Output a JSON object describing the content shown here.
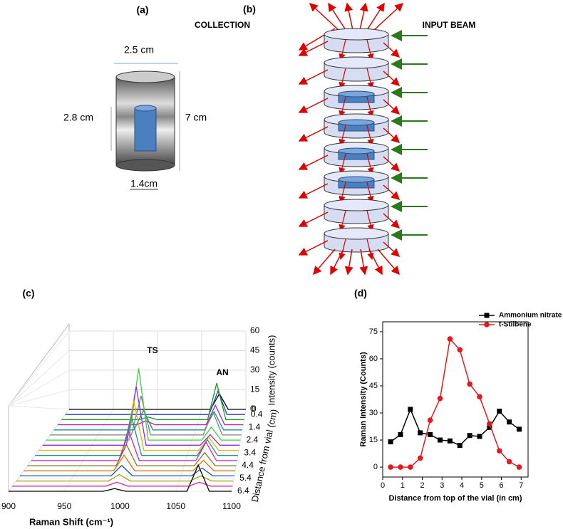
{
  "panel_a": {
    "label": "(a)",
    "width": "2.5 cm",
    "inner_height": "2.8 cm",
    "height": "7 cm",
    "inner_width": "1.4cm"
  },
  "panel_b": {
    "label": "(b)",
    "collection": "COLLECTION",
    "input_beam": "INPUT BEAM"
  },
  "chart_data": [
    {
      "type": "waterfall",
      "label": "(c)",
      "xlabel": "Raman Shift (cm⁻¹)",
      "ylabel": "Intensity (counts)",
      "zlabel": "Distance from vial (cm)",
      "annotations": [
        "TS",
        "AN"
      ],
      "x": [
        900,
        985,
        995,
        1005,
        1060,
        1070,
        1080,
        1100
      ],
      "xlim": [
        900,
        1100
      ],
      "xticks": [
        900,
        950,
        1000,
        1050,
        1100
      ],
      "ylim": [
        0,
        60
      ],
      "yticks": [
        0,
        15,
        30,
        45,
        60
      ],
      "z": [
        0,
        0.4,
        0.8,
        1.2,
        1.6,
        2.0,
        2.4,
        2.8,
        3.2,
        3.6,
        4.0,
        4.4,
        4.8,
        5.2,
        5.6,
        6.0,
        6.4
      ],
      "zlim": [
        0,
        6.4
      ],
      "zticks": [
        0,
        0.4,
        1.4,
        2.4,
        3.4,
        4.4,
        5.4,
        6.4
      ],
      "series": [
        {
          "color": "#000000",
          "values": [
            0,
            0,
            0,
            0,
            0,
            12,
            0,
            0
          ]
        },
        {
          "color": "#1f3fd0",
          "values": [
            0,
            0,
            0,
            0,
            0,
            18,
            0,
            0
          ]
        },
        {
          "color": "#1a9a1a",
          "values": [
            0,
            0,
            2,
            0,
            0,
            28,
            0,
            0
          ]
        },
        {
          "color": "#b0219e",
          "values": [
            0,
            0,
            3,
            0,
            0,
            15,
            0,
            0
          ]
        },
        {
          "color": "#1f8f8f",
          "values": [
            0,
            0,
            15,
            0,
            0,
            14,
            0,
            0
          ]
        },
        {
          "color": "#808080",
          "values": [
            0,
            0,
            30,
            0,
            0,
            18,
            0,
            0
          ]
        },
        {
          "color": "#3ecf3e",
          "values": [
            0,
            0,
            55,
            0,
            0,
            10,
            0,
            0
          ]
        },
        {
          "color": "#8a2be2",
          "values": [
            0,
            0,
            45,
            0,
            0,
            8,
            0,
            0
          ]
        },
        {
          "color": "#e8b000",
          "values": [
            0,
            0,
            38,
            0,
            0,
            10,
            0,
            0
          ]
        },
        {
          "color": "#1f8fa0",
          "values": [
            0,
            0,
            30,
            0,
            0,
            12,
            0,
            0
          ]
        },
        {
          "color": "#d020c0",
          "values": [
            0,
            0,
            22,
            0,
            0,
            14,
            0,
            0
          ]
        },
        {
          "color": "#7a7a20",
          "values": [
            0,
            0,
            16,
            0,
            0,
            10,
            0,
            0
          ]
        },
        {
          "color": "#e07000",
          "values": [
            0,
            0,
            12,
            0,
            0,
            8,
            0,
            0
          ]
        },
        {
          "color": "#1050c0",
          "values": [
            0,
            0,
            8,
            0,
            0,
            6,
            0,
            0
          ]
        },
        {
          "color": "#a0a000",
          "values": [
            0,
            0,
            5,
            0,
            0,
            4,
            0,
            0
          ]
        },
        {
          "color": "#e020a0",
          "values": [
            0,
            0,
            3,
            0,
            0,
            3,
            0,
            0
          ]
        },
        {
          "color": "#000000",
          "values": [
            0,
            0,
            2,
            0,
            0,
            20,
            0,
            0
          ]
        }
      ]
    },
    {
      "type": "line",
      "label": "(d)",
      "xlabel": "Distance from top of the vial (in cm)",
      "ylabel": "Raman Intensity (Counts)",
      "x": [
        0.4,
        0.9,
        1.4,
        1.9,
        2.4,
        2.9,
        3.4,
        3.9,
        4.4,
        4.9,
        5.4,
        5.9,
        6.4,
        6.9
      ],
      "xlim": [
        0,
        7.35
      ],
      "xticks": [
        0,
        1,
        2,
        3,
        4,
        5,
        6,
        7
      ],
      "ylim": [
        -5.5,
        80.5
      ],
      "yticks": [
        0,
        15,
        30,
        45,
        60,
        75
      ],
      "legend": "upper right",
      "series": [
        {
          "name": "Ammonium nitrate",
          "color": "#000000",
          "marker": "square",
          "values": [
            14,
            18,
            32,
            19,
            18,
            15,
            14.5,
            12,
            17.5,
            17,
            22,
            31,
            25,
            21
          ]
        },
        {
          "name": "t-Stilbene",
          "color": "#e31a1c",
          "marker": "circle",
          "values": [
            0,
            0,
            0,
            5,
            26,
            38,
            71,
            65,
            46,
            39,
            24,
            9,
            3,
            0
          ]
        }
      ]
    }
  ]
}
